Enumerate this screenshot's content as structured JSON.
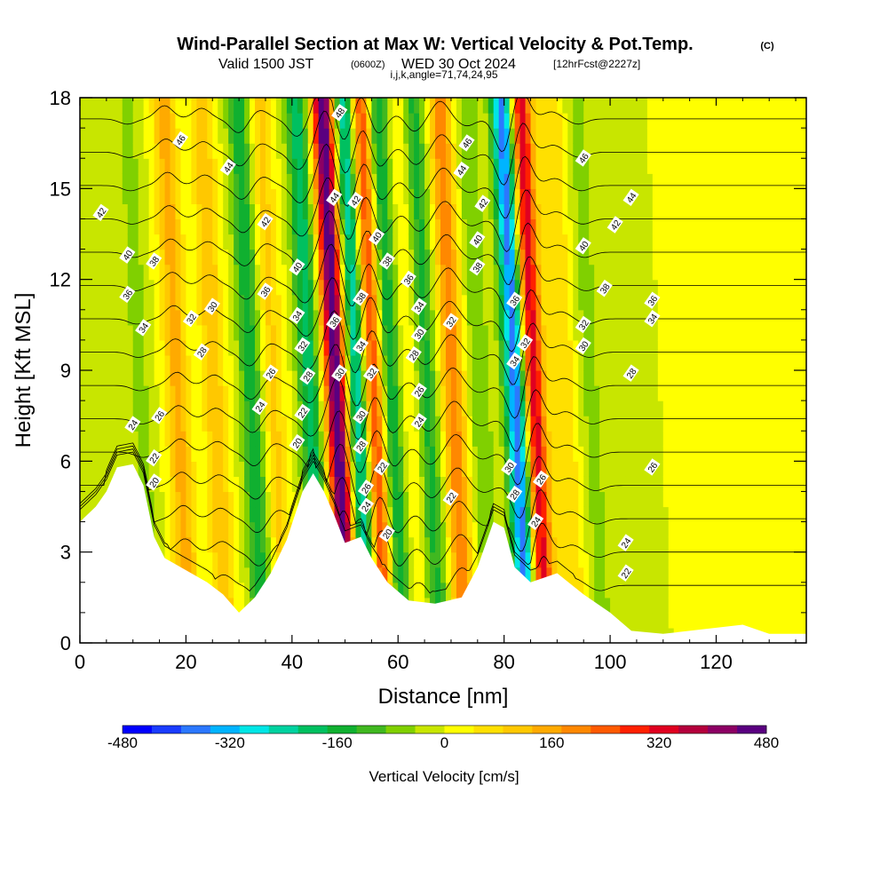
{
  "title": {
    "main": "Wind-Parallel Section at Max W: Vertical Velocity & Pot.Temp.",
    "copyright": "(C)",
    "valid_prefix": "Valid 1500 JST",
    "valid_utc": "(0600Z)",
    "valid_date": "WED 30 Oct 2024",
    "forecast": "[12hrFcst@2227z]",
    "indices": "i,j,k,angle=71,74,24,95"
  },
  "chart_data": {
    "type": "heatmap",
    "xlabel": "Distance [nm]",
    "ylabel": "Height [Kft MSL]",
    "xlim": [
      0,
      137
    ],
    "ylim": [
      0,
      18
    ],
    "xticks": [
      0,
      20,
      40,
      60,
      80,
      100,
      120
    ],
    "yticks": [
      0,
      3,
      6,
      9,
      12,
      15,
      18
    ],
    "colorbar": {
      "title": "Vertical Velocity [cm/s]",
      "min": -480,
      "max": 480,
      "ticks": [
        -480,
        -320,
        -160,
        0,
        160,
        320,
        480
      ],
      "colors": [
        "#0000ff",
        "#1a3cff",
        "#2b78ff",
        "#00b4ff",
        "#00e6e6",
        "#00d2a0",
        "#00c060",
        "#10b030",
        "#40b820",
        "#80d000",
        "#c8e600",
        "#ffff00",
        "#ffe000",
        "#ffc800",
        "#ffaa00",
        "#ff8800",
        "#ff5a00",
        "#ff2000",
        "#e00020",
        "#b4003c",
        "#8c0064",
        "#5a0080"
      ]
    },
    "vertical_velocity_bands": [
      {
        "x": 12,
        "w": -60
      },
      {
        "x": 19,
        "w": 150
      },
      {
        "x": 26,
        "w": 120
      },
      {
        "x": 33,
        "w": -160
      },
      {
        "x": 37,
        "w": 100
      },
      {
        "x": 44,
        "w": -200
      },
      {
        "x": 49,
        "w": 480
      },
      {
        "x": 53,
        "w": -300
      },
      {
        "x": 56,
        "w": 320
      },
      {
        "x": 59,
        "w": -200
      },
      {
        "x": 63,
        "w": 60
      },
      {
        "x": 66,
        "w": -150
      },
      {
        "x": 71,
        "w": 200
      },
      {
        "x": 76,
        "w": -80
      },
      {
        "x": 83,
        "w": -420
      },
      {
        "x": 86,
        "w": 380
      },
      {
        "x": 92,
        "w": 80
      },
      {
        "x": 97,
        "w": -60
      }
    ],
    "terrain_profile": [
      {
        "x": 0,
        "h": 4.0
      },
      {
        "x": 3,
        "h": 4.5
      },
      {
        "x": 5,
        "h": 5.0
      },
      {
        "x": 7,
        "h": 5.8
      },
      {
        "x": 10,
        "h": 5.9
      },
      {
        "x": 12,
        "h": 5.2
      },
      {
        "x": 14,
        "h": 3.5
      },
      {
        "x": 16,
        "h": 2.8
      },
      {
        "x": 20,
        "h": 2.4
      },
      {
        "x": 24,
        "h": 2.0
      },
      {
        "x": 27,
        "h": 1.6
      },
      {
        "x": 30,
        "h": 1.0
      },
      {
        "x": 33,
        "h": 1.5
      },
      {
        "x": 36,
        "h": 2.3
      },
      {
        "x": 39,
        "h": 3.4
      },
      {
        "x": 42,
        "h": 5.0
      },
      {
        "x": 44,
        "h": 5.6
      },
      {
        "x": 46,
        "h": 5.0
      },
      {
        "x": 48,
        "h": 4.2
      },
      {
        "x": 50,
        "h": 3.3
      },
      {
        "x": 53,
        "h": 3.5
      },
      {
        "x": 55,
        "h": 2.8
      },
      {
        "x": 58,
        "h": 2.0
      },
      {
        "x": 62,
        "h": 1.4
      },
      {
        "x": 67,
        "h": 1.3
      },
      {
        "x": 72,
        "h": 1.5
      },
      {
        "x": 75,
        "h": 2.5
      },
      {
        "x": 78,
        "h": 4.0
      },
      {
        "x": 80,
        "h": 3.8
      },
      {
        "x": 82,
        "h": 2.5
      },
      {
        "x": 85,
        "h": 2.0
      },
      {
        "x": 90,
        "h": 2.3
      },
      {
        "x": 95,
        "h": 1.6
      },
      {
        "x": 100,
        "h": 1.0
      },
      {
        "x": 104,
        "h": 0.4
      },
      {
        "x": 110,
        "h": 0.3
      },
      {
        "x": 125,
        "h": 0.6
      },
      {
        "x": 130,
        "h": 0.3
      },
      {
        "x": 137,
        "h": 0.3
      }
    ],
    "theta_contours": [
      20,
      22,
      24,
      26,
      28,
      30,
      32,
      34,
      36,
      38,
      40,
      42,
      44,
      46,
      48
    ],
    "contour_labels": [
      {
        "x": 19,
        "y": 16.6,
        "text": "46"
      },
      {
        "x": 28,
        "y": 15.7,
        "text": "44"
      },
      {
        "x": 4,
        "y": 14.2,
        "text": "42"
      },
      {
        "x": 35,
        "y": 13.9,
        "text": "42"
      },
      {
        "x": 9,
        "y": 12.8,
        "text": "40"
      },
      {
        "x": 14,
        "y": 12.6,
        "text": "38"
      },
      {
        "x": 9,
        "y": 11.5,
        "text": "36"
      },
      {
        "x": 25,
        "y": 11.1,
        "text": "30"
      },
      {
        "x": 21,
        "y": 10.7,
        "text": "32"
      },
      {
        "x": 12,
        "y": 10.4,
        "text": "34"
      },
      {
        "x": 35,
        "y": 11.6,
        "text": "36"
      },
      {
        "x": 23,
        "y": 9.6,
        "text": "28"
      },
      {
        "x": 36,
        "y": 8.9,
        "text": "26"
      },
      {
        "x": 34,
        "y": 7.8,
        "text": "24"
      },
      {
        "x": 15,
        "y": 7.5,
        "text": "26"
      },
      {
        "x": 10,
        "y": 7.2,
        "text": "24"
      },
      {
        "x": 14,
        "y": 6.1,
        "text": "22"
      },
      {
        "x": 14,
        "y": 5.3,
        "text": "20"
      },
      {
        "x": 41,
        "y": 12.4,
        "text": "40"
      },
      {
        "x": 41,
        "y": 10.8,
        "text": "34"
      },
      {
        "x": 42,
        "y": 9.8,
        "text": "32"
      },
      {
        "x": 43,
        "y": 8.8,
        "text": "28"
      },
      {
        "x": 42,
        "y": 7.6,
        "text": "22"
      },
      {
        "x": 41,
        "y": 6.6,
        "text": "20"
      },
      {
        "x": 49,
        "y": 17.5,
        "text": "48"
      },
      {
        "x": 48,
        "y": 14.7,
        "text": "44"
      },
      {
        "x": 52,
        "y": 14.6,
        "text": "42"
      },
      {
        "x": 56,
        "y": 13.4,
        "text": "40"
      },
      {
        "x": 58,
        "y": 12.6,
        "text": "38"
      },
      {
        "x": 53,
        "y": 11.4,
        "text": "38"
      },
      {
        "x": 48,
        "y": 10.6,
        "text": "36"
      },
      {
        "x": 62,
        "y": 12.0,
        "text": "36"
      },
      {
        "x": 64,
        "y": 11.1,
        "text": "34"
      },
      {
        "x": 64,
        "y": 10.2,
        "text": "30"
      },
      {
        "x": 70,
        "y": 10.6,
        "text": "32"
      },
      {
        "x": 53,
        "y": 9.8,
        "text": "34"
      },
      {
        "x": 49,
        "y": 8.9,
        "text": "30"
      },
      {
        "x": 55,
        "y": 8.9,
        "text": "32"
      },
      {
        "x": 63,
        "y": 9.5,
        "text": "28"
      },
      {
        "x": 64,
        "y": 8.3,
        "text": "26"
      },
      {
        "x": 53,
        "y": 7.5,
        "text": "30"
      },
      {
        "x": 64,
        "y": 7.3,
        "text": "24"
      },
      {
        "x": 53,
        "y": 6.5,
        "text": "28"
      },
      {
        "x": 57,
        "y": 5.8,
        "text": "22"
      },
      {
        "x": 54,
        "y": 5.1,
        "text": "26"
      },
      {
        "x": 54,
        "y": 4.5,
        "text": "24"
      },
      {
        "x": 58,
        "y": 3.6,
        "text": "20"
      },
      {
        "x": 70,
        "y": 4.8,
        "text": "22"
      },
      {
        "x": 73,
        "y": 16.5,
        "text": "46"
      },
      {
        "x": 72,
        "y": 15.6,
        "text": "44"
      },
      {
        "x": 76,
        "y": 14.5,
        "text": "42"
      },
      {
        "x": 75,
        "y": 13.3,
        "text": "40"
      },
      {
        "x": 75,
        "y": 12.4,
        "text": "38"
      },
      {
        "x": 82,
        "y": 11.3,
        "text": "36"
      },
      {
        "x": 84,
        "y": 9.9,
        "text": "32"
      },
      {
        "x": 82,
        "y": 9.3,
        "text": "34"
      },
      {
        "x": 81,
        "y": 5.8,
        "text": "30"
      },
      {
        "x": 82,
        "y": 4.9,
        "text": "28"
      },
      {
        "x": 87,
        "y": 5.4,
        "text": "26"
      },
      {
        "x": 86,
        "y": 4.0,
        "text": "24"
      },
      {
        "x": 95,
        "y": 16.0,
        "text": "46"
      },
      {
        "x": 104,
        "y": 14.7,
        "text": "44"
      },
      {
        "x": 101,
        "y": 13.8,
        "text": "42"
      },
      {
        "x": 95,
        "y": 13.1,
        "text": "40"
      },
      {
        "x": 99,
        "y": 11.7,
        "text": "38"
      },
      {
        "x": 95,
        "y": 10.5,
        "text": "32"
      },
      {
        "x": 95,
        "y": 9.8,
        "text": "30"
      },
      {
        "x": 108,
        "y": 11.3,
        "text": "36"
      },
      {
        "x": 108,
        "y": 10.7,
        "text": "34"
      },
      {
        "x": 104,
        "y": 8.9,
        "text": "28"
      },
      {
        "x": 108,
        "y": 5.8,
        "text": "26"
      },
      {
        "x": 103,
        "y": 3.3,
        "text": "24"
      },
      {
        "x": 103,
        "y": 2.3,
        "text": "22"
      }
    ]
  }
}
